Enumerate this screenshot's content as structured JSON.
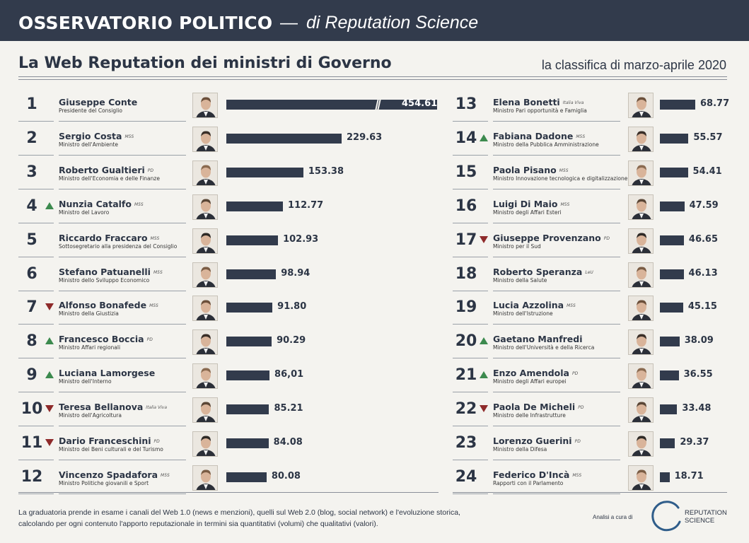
{
  "header": {
    "title": "OSSERVATORIO POLITICO",
    "dash": "—",
    "subtitle": "di Reputation Science"
  },
  "headline": "La Web Reputation dei ministri di Governo",
  "period": "la classifica di marzo-aprile 2020",
  "colors": {
    "bar": "#323b4c",
    "up": "#3c8a4e",
    "down": "#8e2a2a",
    "header": "#323b4c"
  },
  "chart_data": {
    "type": "bar",
    "orientation": "horizontal",
    "axis_break_on_first_bar": true,
    "grid": false,
    "items": [
      {
        "rank": "1",
        "trend": "",
        "name": "Giuseppe Conte",
        "party": "",
        "role": "Presidente del Consiglio",
        "value": 454.61,
        "value_label": "454.61"
      },
      {
        "rank": "2",
        "trend": "",
        "name": "Sergio Costa",
        "party": "M5S",
        "role": "Ministro dell'Ambiente",
        "value": 229.63,
        "value_label": "229.63"
      },
      {
        "rank": "3",
        "trend": "",
        "name": "Roberto Gualtieri",
        "party": "PD",
        "role": "Ministro dell'Economia e delle Finanze",
        "value": 153.38,
        "value_label": "153.38"
      },
      {
        "rank": "4",
        "trend": "up",
        "name": "Nunzia Catalfo",
        "party": "M5S",
        "role": "Ministro del Lavoro",
        "value": 112.77,
        "value_label": "112.77"
      },
      {
        "rank": "5",
        "trend": "",
        "name": "Riccardo Fraccaro",
        "party": "M5S",
        "role": "Sottosegretario alla presidenza del Consiglio",
        "value": 102.93,
        "value_label": "102.93"
      },
      {
        "rank": "6",
        "trend": "",
        "name": "Stefano Patuanelli",
        "party": "M5S",
        "role": "Ministro dello Sviluppo Economico",
        "value": 98.94,
        "value_label": "98.94"
      },
      {
        "rank": "7",
        "trend": "down",
        "name": "Alfonso Bonafede",
        "party": "M5S",
        "role": "Ministro della Giustizia",
        "value": 91.8,
        "value_label": "91.80"
      },
      {
        "rank": "8",
        "trend": "up",
        "name": "Francesco Boccia",
        "party": "PD",
        "role": "Ministro Affari regionali",
        "value": 90.29,
        "value_label": "90.29"
      },
      {
        "rank": "9",
        "trend": "up",
        "name": "Luciana Lamorgese",
        "party": "",
        "role": "Ministro dell'Interno",
        "value": 86.01,
        "value_label": "86,01"
      },
      {
        "rank": "10",
        "trend": "down",
        "name": "Teresa Bellanova",
        "party": "Italia Viva",
        "role": "Ministro dell'Agricoltura",
        "value": 85.21,
        "value_label": "85.21"
      },
      {
        "rank": "11",
        "trend": "down",
        "name": "Dario Franceschini",
        "party": "PD",
        "role": "Ministro dei Beni culturali e del Turismo",
        "value": 84.08,
        "value_label": "84.08"
      },
      {
        "rank": "12",
        "trend": "",
        "name": "Vincenzo Spadafora",
        "party": "M5S",
        "role": "Ministro Politiche giovanili e Sport",
        "value": 80.08,
        "value_label": "80.08"
      },
      {
        "rank": "13",
        "trend": "",
        "name": "Elena Bonetti",
        "party": "Italia Viva",
        "role": "Ministro Pari opportunità e Famiglia",
        "value": 68.77,
        "value_label": "68.77"
      },
      {
        "rank": "14",
        "trend": "up",
        "name": "Fabiana Dadone",
        "party": "M5S",
        "role": "Ministro della Pubblica Amministrazione",
        "value": 55.57,
        "value_label": "55.57"
      },
      {
        "rank": "15",
        "trend": "",
        "name": "Paola Pisano",
        "party": "M5S",
        "role": "Ministro Innovazione tecnologica e digitalizzazione",
        "value": 54.41,
        "value_label": "54.41"
      },
      {
        "rank": "16",
        "trend": "",
        "name": "Luigi Di Maio",
        "party": "M5S",
        "role": "Ministro degli Affari Esteri",
        "value": 47.59,
        "value_label": "47.59"
      },
      {
        "rank": "17",
        "trend": "down",
        "name": "Giuseppe Provenzano",
        "party": "PD",
        "role": "Ministro per il Sud",
        "value": 46.65,
        "value_label": "46.65"
      },
      {
        "rank": "18",
        "trend": "",
        "name": "Roberto Speranza",
        "party": "LeU",
        "role": "Ministro della Salute",
        "value": 46.13,
        "value_label": "46.13"
      },
      {
        "rank": "19",
        "trend": "",
        "name": "Lucia Azzolina",
        "party": "M5S",
        "role": "Ministro dell'Istruzione",
        "value": 45.15,
        "value_label": "45.15"
      },
      {
        "rank": "20",
        "trend": "up",
        "name": "Gaetano Manfredi",
        "party": "",
        "role": "Ministro dell'Università e della Ricerca",
        "value": 38.09,
        "value_label": "38.09"
      },
      {
        "rank": "21",
        "trend": "up",
        "name": "Enzo Amendola",
        "party": "PD",
        "role": "Ministro degli Affari europei",
        "value": 36.55,
        "value_label": "36.55"
      },
      {
        "rank": "22",
        "trend": "down",
        "name": "Paola De Micheli",
        "party": "PD",
        "role": "Ministro delle Infrastrutture",
        "value": 33.48,
        "value_label": "33.48"
      },
      {
        "rank": "23",
        "trend": "",
        "name": "Lorenzo Guerini",
        "party": "PD",
        "role": "Ministro della Difesa",
        "value": 29.37,
        "value_label": "29.37"
      },
      {
        "rank": "24",
        "trend": "",
        "name": "Federico D'Incà",
        "party": "M5S",
        "role": "Rapporti con il Parlamento",
        "value": 18.71,
        "value_label": "18.71"
      }
    ]
  },
  "footer": {
    "line1": "La graduatoria prende in esame i canali del Web 1.0 (news e menzioni), quelli sul Web 2.0 (blog, social network) e l'evoluzione storica,",
    "line2": "calcolando per ogni contenuto l'apporto reputazionale in termini sia quantitativi (volumi) che qualitativi (valori).",
    "analysis_label": "Analisi a cura di",
    "logo_line1": "REPUTATION",
    "logo_line2": "SCIENCE"
  }
}
